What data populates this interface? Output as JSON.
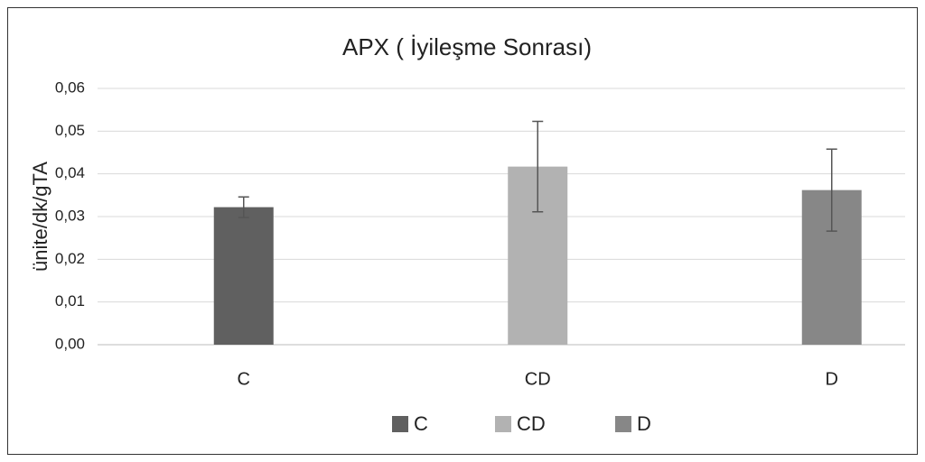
{
  "chart_data": {
    "type": "bar",
    "title": "APX ( İyileşme Sonrası)",
    "y_label": "ünite/dk/gTA",
    "categories": [
      "C",
      "CD",
      "D"
    ],
    "values": [
      0.0322,
      0.0417,
      0.0362
    ],
    "errors": [
      0.0024,
      0.0106,
      0.0096
    ],
    "colors": [
      "#606060",
      "#b2b2b2",
      "#878787"
    ],
    "ylim": [
      0,
      0.06
    ],
    "yticks": [
      {
        "value": 0,
        "label": "0,00"
      },
      {
        "value": 0.01,
        "label": "0,01"
      },
      {
        "value": 0.02,
        "label": "0,02"
      },
      {
        "value": 0.03,
        "label": "0,03"
      },
      {
        "value": 0.04,
        "label": "0,04"
      },
      {
        "value": 0.05,
        "label": "0,05"
      },
      {
        "value": 0.06,
        "label": "0,06"
      }
    ],
    "grid": true,
    "legend": "bottom"
  }
}
